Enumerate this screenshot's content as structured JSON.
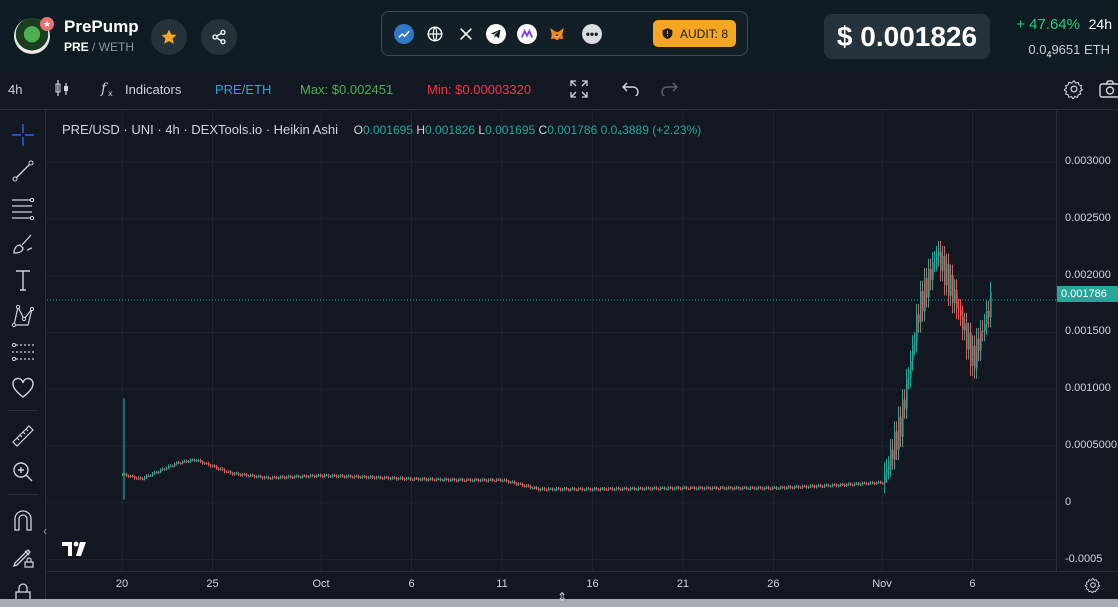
{
  "header": {
    "token_name": "PrePump",
    "token_symbol": "PRE",
    "pair_sep": " / ",
    "quote_symbol": "WETH",
    "audit_label": "AUDIT: 8",
    "price_usd": "$ 0.001826",
    "change_24h": "+ 47.64%",
    "period": "24h",
    "price_eth_prefix": "0.0",
    "price_eth_sub": "4",
    "price_eth_digits": "9651",
    "price_eth_unit": "ETH",
    "icons": [
      "logo-icon",
      "star-icon",
      "share-icon",
      "chart-link-icon",
      "globe-icon",
      "x-icon",
      "telegram-icon",
      "dex-icon",
      "metamask-icon",
      "more-icon",
      "shield-icon"
    ]
  },
  "toolbar": {
    "interval": "4h",
    "indicators": "Indicators",
    "pair": "PRE/ETH",
    "max": "Max: $0.002451",
    "min": "Min: $0.00003320"
  },
  "legend": {
    "title": "PRE/USD · UNI · 4h · DEXTools.io · Heikin Ashi",
    "o_label": "O",
    "o": "0.001695",
    "h_label": "H",
    "h": "0.001826",
    "l_label": "L",
    "l": "0.001695",
    "c_label": "C",
    "c": "0.001786",
    "change": "0.0₄3889 (+2.23%)"
  },
  "last_price_tag": "0.001786",
  "colors": {
    "up": "#26a69a",
    "down": "#ef5350",
    "accent": "#2196f3",
    "max": "#4caf50",
    "min": "#f23645"
  },
  "chart_data": {
    "type": "candlestick",
    "style": "Heikin Ashi",
    "y_ticks": [
      "0.003000",
      "0.002500",
      "0.002000",
      "0.001500",
      "0.001000",
      "0.0005000",
      "0",
      "-0.0005"
    ],
    "y_tick_values": [
      0.003,
      0.0025,
      0.002,
      0.0015,
      0.001,
      0.0005,
      0,
      -0.0005
    ],
    "ylim": [
      -0.0006,
      0.00345
    ],
    "x_ticks": [
      "20",
      "25",
      "Oct",
      "6",
      "11",
      "16",
      "21",
      "26",
      "Nov",
      "6"
    ],
    "x_tick_dates": [
      "2024-09-20",
      "2024-09-25",
      "2024-10-01",
      "2024-10-06",
      "2024-10-11",
      "2024-10-16",
      "2024-10-21",
      "2024-10-26",
      "2024-11-01",
      "2024-11-06"
    ],
    "grid": true,
    "series_price": {
      "x": [
        "2024-09-20",
        "2024-09-21",
        "2024-09-23",
        "2024-09-24",
        "2024-09-26",
        "2024-09-28",
        "2024-10-01",
        "2024-10-03",
        "2024-10-06",
        "2024-10-09",
        "2024-10-11",
        "2024-10-13",
        "2024-10-16",
        "2024-10-21",
        "2024-10-26",
        "2024-10-30",
        "2024-11-01",
        "2024-11-02",
        "2024-11-03",
        "2024-11-04",
        "2024-11-05",
        "2024-11-06",
        "2024-11-07"
      ],
      "y": [
        0.00025,
        0.00021,
        0.00035,
        0.00038,
        0.00026,
        0.00022,
        0.00024,
        0.00023,
        0.00021,
        0.0002,
        0.0002,
        0.00012,
        0.00012,
        0.00013,
        0.00013,
        0.00016,
        0.00018,
        0.0007,
        0.0017,
        0.0022,
        0.0018,
        0.00125,
        0.00178
      ]
    },
    "last": 0.001786,
    "max": 0.002451,
    "min": 3.32e-05
  }
}
